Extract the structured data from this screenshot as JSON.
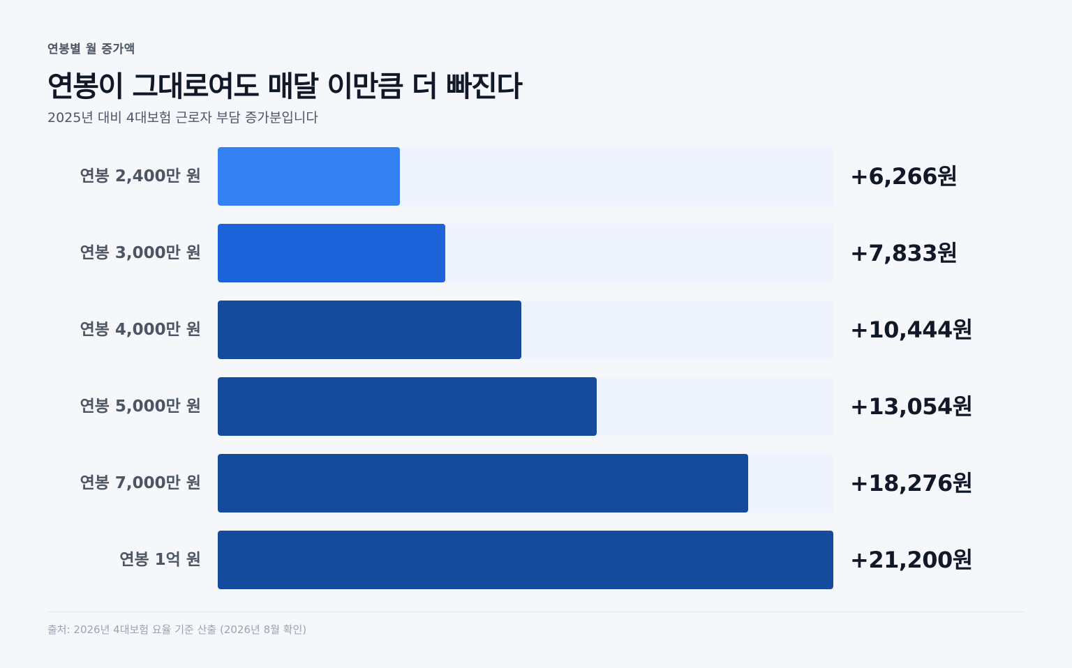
{
  "header": {
    "eyebrow": "연봉별 월 증가액",
    "title": "연봉이 그대로여도 매달 이만큼 더 빠진다",
    "subtitle": "2025년 대비 4대보험 근로자 부담 증가분입니다"
  },
  "footer": {
    "source": "출처: 2026년 4대보험 요율 기준 산출 (2026년 8월 확인)"
  },
  "colors": {
    "light": "#3481f4",
    "medium": "#1c63d9",
    "dark": "#154a9c",
    "track": "#eef3fd"
  },
  "chart_data": {
    "type": "bar",
    "orientation": "horizontal",
    "categories": [
      "연봉 2,400만 원",
      "연봉 3,000만 원",
      "연봉 4,000만 원",
      "연봉 5,000만 원",
      "연봉 7,000만 원",
      "연봉 1억 원"
    ],
    "values": [
      6266,
      7833,
      10444,
      13054,
      18276,
      21200
    ],
    "value_labels": [
      "+6,266원",
      "+7,833원",
      "+10,444원",
      "+13,054원",
      "+18,276원",
      "+21,200원"
    ],
    "bar_colors": [
      "#3481f4",
      "#1c63d9",
      "#154a9c",
      "#154a9c",
      "#154a9c",
      "#154a9c"
    ],
    "xlim": [
      0,
      21200
    ],
    "grid": false,
    "legend": "none"
  }
}
